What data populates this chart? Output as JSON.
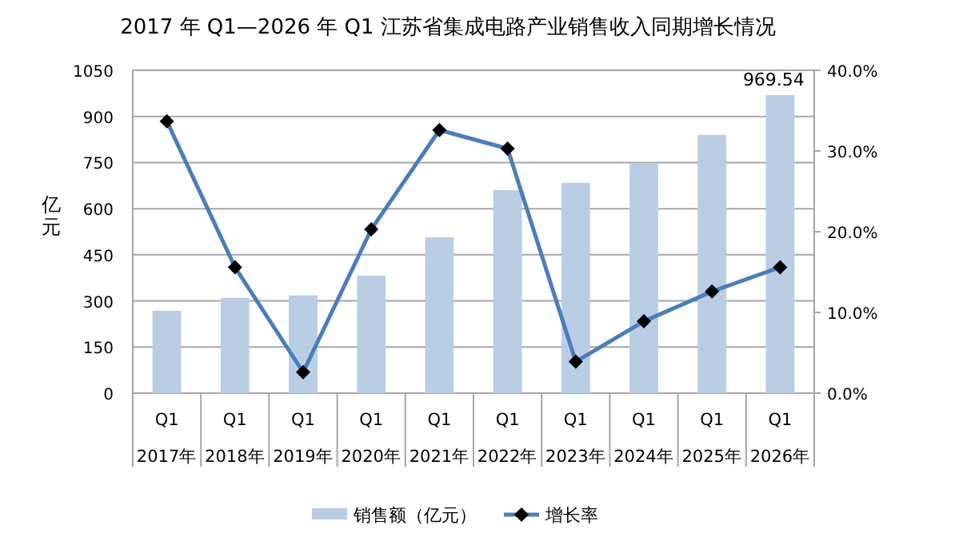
{
  "chart_data": {
    "type": "bar",
    "title": "2017 年 Q1—2026 年 Q1 江苏省集成电路产业销售收入同期增长情况",
    "ylabel": "亿元",
    "categories": [
      "Q1\n2017年",
      "Q1\n2018年",
      "Q1\n2019年",
      "Q1\n2020年",
      "Q1\n2021年",
      "Q1\n2022年",
      "Q1\n2023年",
      "Q1\n2024年",
      "Q1\n2025年",
      "Q1\n2026年"
    ],
    "series": [
      {
        "name": "销售额（亿元）",
        "color": "#b9cde5",
        "values": [
          268,
          310,
          318,
          382,
          507,
          660,
          684,
          747,
          840,
          969.54
        ],
        "value_labels": [
          null,
          null,
          null,
          null,
          null,
          null,
          null,
          null,
          null,
          "969.54"
        ]
      },
      {
        "name": "增长率",
        "type": "line",
        "axis": "y2",
        "color": "#4a7ebb",
        "marker": "diamond",
        "values": [
          33.7,
          15.6,
          2.6,
          20.3,
          32.6,
          30.3,
          3.9,
          8.9,
          12.6,
          15.6
        ]
      }
    ],
    "ylim": [
      0,
      1050
    ],
    "yticks": [
      0,
      150,
      300,
      450,
      600,
      750,
      900,
      1050
    ],
    "y2lim": [
      0,
      40
    ],
    "y2ticks": [
      {
        "value": 0,
        "label": "0.0%"
      },
      {
        "value": 10,
        "label": "10.0%"
      },
      {
        "value": 20,
        "label": "20.0%"
      },
      {
        "value": 30,
        "label": "30.0%"
      },
      {
        "value": 40,
        "label": "40.0%"
      }
    ],
    "grid": "y",
    "legend": "bottom"
  }
}
